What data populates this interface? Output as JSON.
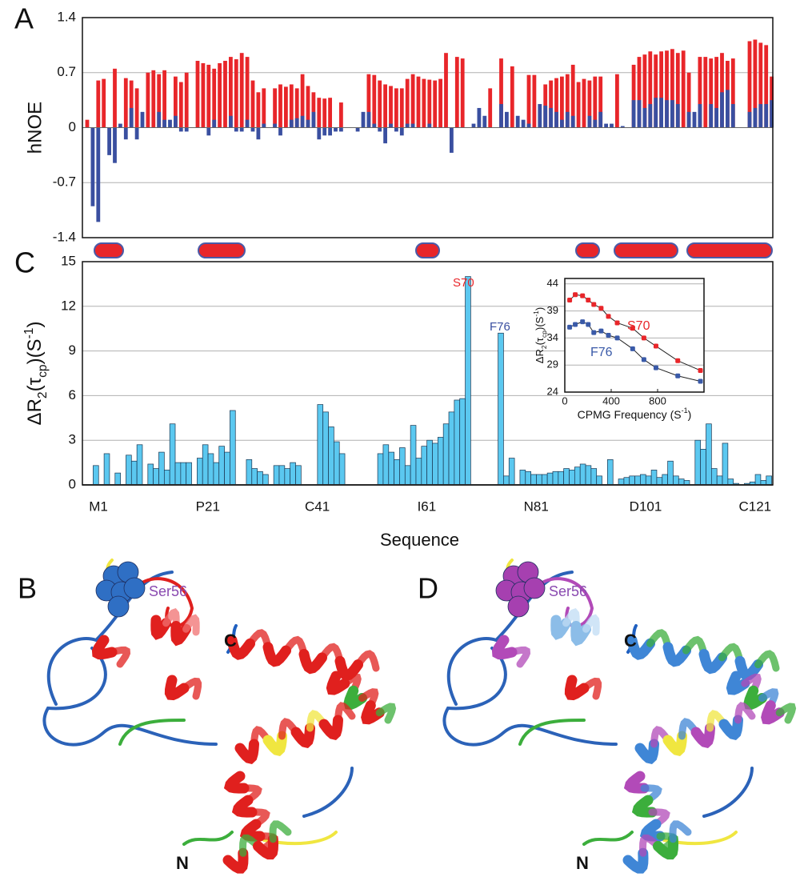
{
  "chart_data": [
    {
      "type": "bar",
      "panel_label": "A",
      "y_label": "hNOE",
      "ylim": [
        -1.4,
        1.4
      ],
      "yticks": [
        -1.4,
        -0.7,
        0,
        0.7,
        1.4
      ],
      "grid": true,
      "series": [
        {
          "color": "#e8262a",
          "values": [
            0.1,
            null,
            0.6,
            0.62,
            null,
            0.75,
            null,
            0.63,
            0.6,
            0.5,
            null,
            0.7,
            0.73,
            0.68,
            0.73,
            null,
            0.65,
            0.58,
            0.7,
            null,
            0.85,
            0.82,
            0.8,
            0.75,
            0.82,
            0.85,
            0.9,
            0.87,
            0.95,
            0.9,
            0.6,
            0.45,
            0.5,
            null,
            0.5,
            0.55,
            0.52,
            0.55,
            0.5,
            0.68,
            0.53,
            0.45,
            0.38,
            0.37,
            0.38,
            null,
            0.32,
            null,
            null,
            null,
            null,
            0.68,
            0.67,
            0.6,
            0.55,
            0.53,
            0.5,
            0.5,
            0.62,
            0.68,
            0.65,
            0.62,
            0.61,
            0.6,
            0.62,
            0.95,
            null,
            0.9,
            0.88,
            null,
            null,
            null,
            null,
            0.5,
            null,
            0.88,
            null,
            0.78,
            null,
            null,
            0.67,
            0.67,
            null,
            0.55,
            0.6,
            0.63,
            0.65,
            0.68,
            0.8,
            0.58,
            0.62,
            0.6,
            0.65,
            0.65,
            null,
            null,
            0.68,
            null,
            null,
            0.8,
            0.9,
            0.93,
            0.97,
            0.93,
            0.97,
            0.98,
            1.0,
            0.95,
            0.98,
            0.7,
            null,
            0.9,
            0.9,
            0.88,
            0.9,
            0.95,
            0.85,
            0.88,
            null,
            null,
            1.1,
            1.12,
            1.08,
            1.05,
            0.65
          ]
        },
        {
          "color": "#3a4fa0",
          "values": [
            null,
            -1.0,
            -1.2,
            null,
            -0.35,
            -0.45,
            0.05,
            -0.15,
            0.25,
            -0.15,
            0.2,
            null,
            null,
            0.2,
            0.1,
            0.1,
            0.15,
            -0.05,
            -0.05,
            null,
            null,
            null,
            -0.1,
            0.1,
            null,
            null,
            0.15,
            -0.05,
            -0.05,
            0.1,
            -0.05,
            -0.15,
            0.05,
            null,
            0.05,
            -0.1,
            null,
            0.1,
            0.12,
            0.15,
            0.1,
            0.2,
            -0.15,
            -0.1,
            -0.1,
            -0.05,
            -0.05,
            null,
            null,
            -0.05,
            0.2,
            0.2,
            0.05,
            -0.05,
            -0.2,
            0.05,
            -0.05,
            -0.1,
            0.05,
            0.05,
            null,
            null,
            0.05,
            null,
            null,
            null,
            -0.32,
            null,
            null,
            null,
            0.05,
            0.25,
            0.15,
            null,
            null,
            0.3,
            0.2,
            null,
            0.15,
            0.1,
            0.05,
            null,
            0.3,
            0.28,
            0.25,
            0.2,
            0.1,
            0.2,
            0.15,
            null,
            null,
            0.15,
            0.1,
            0.2,
            0.05,
            0.05,
            null,
            0.02,
            null,
            0.35,
            0.35,
            0.25,
            0.3,
            0.38,
            0.38,
            0.35,
            0.35,
            0.3,
            null,
            0.2,
            0.2,
            0.3,
            null,
            0.3,
            0.25,
            0.45,
            0.48,
            0.3,
            null,
            null,
            0.2,
            0.25,
            0.3,
            0.3,
            0.35
          ]
        }
      ]
    },
    {
      "type": "bar",
      "panel_label": "C",
      "y_label_parts": [
        "ΔR",
        "2",
        "(τ",
        "cp",
        ")(S",
        "-1",
        ")"
      ],
      "x_label": "Sequence",
      "categories": [
        "M1",
        null,
        null,
        null,
        null,
        null,
        null,
        null,
        null,
        null,
        null,
        null,
        null,
        null,
        null,
        null,
        null,
        null,
        null,
        null,
        "P21",
        null,
        null,
        null,
        null,
        null,
        null,
        null,
        null,
        null,
        null,
        null,
        null,
        null,
        null,
        null,
        null,
        null,
        null,
        null,
        "C41",
        null,
        null,
        null,
        null,
        null,
        null,
        null,
        null,
        null,
        null,
        null,
        null,
        null,
        null,
        null,
        null,
        null,
        null,
        null,
        "I61",
        null,
        null,
        null,
        null,
        null,
        null,
        null,
        null,
        null,
        null,
        null,
        null,
        null,
        null,
        null,
        null,
        null,
        null,
        null,
        "N81",
        null,
        null,
        null,
        null,
        null,
        null,
        null,
        null,
        null,
        null,
        null,
        null,
        null,
        null,
        null,
        null,
        null,
        null,
        null,
        "D101",
        null,
        null,
        null,
        null,
        null,
        null,
        null,
        null,
        null,
        null,
        null,
        null,
        null,
        null,
        null,
        null,
        null,
        null,
        null,
        "C121",
        null,
        null,
        null,
        null
      ],
      "values": [
        null,
        1.3,
        null,
        2.1,
        null,
        0.8,
        null,
        2.0,
        1.6,
        2.7,
        null,
        1.4,
        1.1,
        2.2,
        1.0,
        4.1,
        1.5,
        1.5,
        1.5,
        null,
        1.8,
        2.7,
        2.1,
        1.5,
        2.6,
        2.2,
        5.0,
        null,
        null,
        1.7,
        1.1,
        0.9,
        0.7,
        null,
        1.3,
        1.3,
        1.1,
        1.5,
        1.3,
        null,
        null,
        null,
        5.4,
        4.9,
        3.9,
        2.9,
        2.1,
        null,
        null,
        null,
        null,
        null,
        null,
        2.1,
        2.7,
        2.2,
        1.7,
        2.5,
        1.3,
        4.0,
        1.8,
        2.6,
        3.0,
        2.8,
        3.2,
        4.1,
        4.9,
        5.7,
        5.8,
        14.0,
        null,
        null,
        null,
        null,
        null,
        10.2,
        0.6,
        1.8,
        null,
        1.0,
        0.9,
        0.7,
        0.7,
        0.7,
        0.8,
        0.9,
        0.9,
        1.1,
        1.0,
        1.2,
        1.4,
        1.3,
        1.1,
        0.6,
        null,
        1.7,
        null,
        0.4,
        0.5,
        0.6,
        0.6,
        0.7,
        0.6,
        1.0,
        0.5,
        0.7,
        1.6,
        0.6,
        0.4,
        0.3,
        null,
        3.0,
        2.4,
        4.1,
        1.1,
        0.6,
        2.8,
        0.4,
        0.1,
        null,
        0.1,
        0.2,
        0.7,
        0.3,
        0.6
      ],
      "color": "#5bc8f0",
      "ylim": [
        0,
        15
      ],
      "yticks": [
        0,
        3,
        6,
        9,
        12,
        15
      ],
      "grid": true,
      "annotations": [
        {
          "text": "S70",
          "color": "#e8262a"
        },
        {
          "text": "F76",
          "color": "#3a4fa0"
        }
      ]
    },
    {
      "type": "line",
      "y_label_parts": [
        "ΔR",
        "2",
        "(τ",
        "cp",
        ")(S",
        "-1",
        ")"
      ],
      "x_label_parts": [
        "CPMG Frequency (S",
        "-1",
        ")"
      ],
      "x": [
        42,
        90,
        153,
        202,
        250,
        313,
        376,
        452,
        585,
        682,
        786,
        974,
        1169
      ],
      "xlim": [
        0,
        1200
      ],
      "xticks": [
        0,
        400,
        800
      ],
      "ylim": [
        24,
        45
      ],
      "yticks": [
        24,
        29,
        34,
        39,
        44
      ],
      "grid": true,
      "series": [
        {
          "name": "S70",
          "color": "#e8262a",
          "values": [
            41,
            42,
            41.8,
            41,
            40.2,
            39.5,
            38,
            36.8,
            35.8,
            34,
            32.5,
            29.8,
            28
          ]
        },
        {
          "name": "F76",
          "color": "#3a5aa8",
          "values": [
            36,
            36.5,
            37,
            36.5,
            35,
            35.3,
            34.5,
            34,
            32,
            30,
            28.5,
            27,
            26
          ]
        }
      ]
    }
  ],
  "structures": [
    {
      "panel_label": "B",
      "c_terminus": "C",
      "n_terminus": "N",
      "residue_label": "Ser56"
    },
    {
      "panel_label": "D",
      "c_terminus": "C",
      "n_terminus": "N",
      "residue_label": "Ser56"
    }
  ]
}
